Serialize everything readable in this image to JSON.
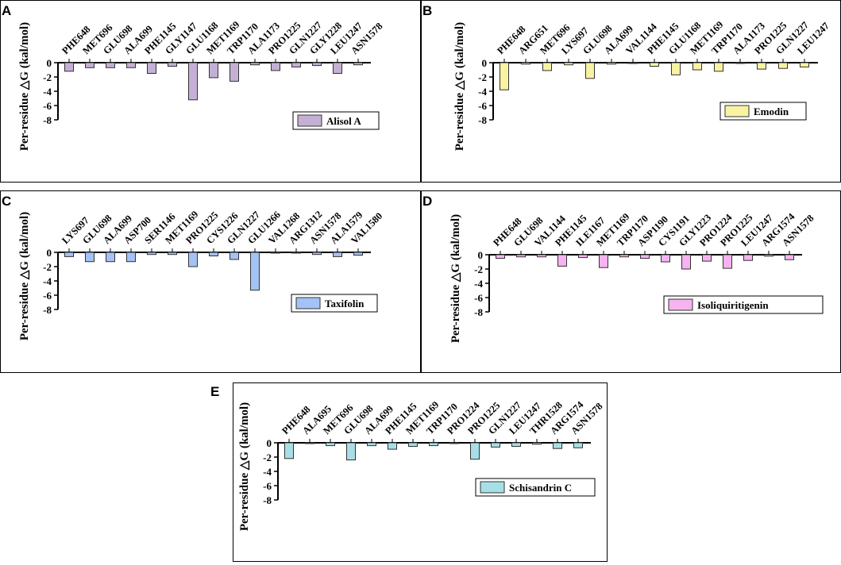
{
  "chart_data": [
    {
      "panel": "A",
      "type": "bar",
      "ylabel": "Per-residue △G (kal/mol)",
      "ylim": [
        -8,
        0
      ],
      "yticks": [
        "0",
        "-2",
        "-4",
        "-6",
        "-8"
      ],
      "legend": "Alisol A",
      "color": "#c5b0d5",
      "categories": [
        "PHE648",
        "MET696",
        "GLU698",
        "ALA699",
        "PHE1145",
        "GLY1147",
        "GLU1168",
        "MET1169",
        "TRP1170",
        "ALA1173",
        "PRO1225",
        "GLN1227",
        "GLY1228",
        "LEU1247",
        "ASN1578"
      ],
      "values": [
        -1.2,
        -0.7,
        -0.7,
        -0.7,
        -1.5,
        -0.5,
        -5.2,
        -2.1,
        -2.6,
        -0.3,
        -1.1,
        -0.6,
        -0.4,
        -1.5,
        -0.3
      ]
    },
    {
      "panel": "B",
      "type": "bar",
      "ylabel": "Per-residue △G (kal/mol)",
      "ylim": [
        -8,
        0
      ],
      "yticks": [
        "0",
        "-2",
        "-4",
        "-6",
        "-8"
      ],
      "legend": "Emodin",
      "color": "#f7f3a3",
      "categories": [
        "PHE648",
        "ARG651",
        "MET696",
        "LYS697",
        "GLU698",
        "ALA699",
        "VAL1144",
        "PHE1145",
        "GLU1168",
        "MET1169",
        "TRP1170",
        "ALA1173",
        "PRO1225",
        "GLN1227",
        "LEU1247"
      ],
      "values": [
        -3.8,
        -0.2,
        -1.1,
        -0.3,
        -2.2,
        -0.2,
        -0.1,
        -0.5,
        -1.7,
        -1.0,
        -1.2,
        -0.1,
        -0.9,
        -0.8,
        -0.6
      ]
    },
    {
      "panel": "C",
      "type": "bar",
      "ylabel": "Per-residue △G (kal/mol)",
      "ylim": [
        -8,
        0
      ],
      "yticks": [
        "0",
        "-2",
        "-4",
        "-6",
        "-8"
      ],
      "legend": "Taxifolin",
      "color": "#a4c2f4",
      "categories": [
        "LYS697",
        "GLU698",
        "ALA699",
        "ASP700",
        "SER1146",
        "MET1169",
        "PRO1225",
        "CYS1226",
        "GLN1227",
        "GLU1266",
        "VAL1268",
        "ARG1312",
        "ASN1578",
        "ALA1579",
        "VAL1580"
      ],
      "values": [
        -0.6,
        -1.3,
        -1.3,
        -1.3,
        -0.3,
        -0.3,
        -2.0,
        -0.5,
        -1.0,
        -5.3,
        -0.1,
        -0.1,
        -0.3,
        -0.6,
        -0.4
      ]
    },
    {
      "panel": "D",
      "type": "bar",
      "ylabel": "Per-residue △G (kal/mol)",
      "ylim": [
        -8,
        0
      ],
      "yticks": [
        "0",
        "-2",
        "-4",
        "-6",
        "-8"
      ],
      "legend": "Isoliquiritigenin",
      "color": "#f6b3f0",
      "categories": [
        "PHE648",
        "GLU698",
        "VAL1144",
        "PHE1145",
        "ILE1167",
        "MET1169",
        "TRP1170",
        "ASP1190",
        "CYS1191",
        "GLY1223",
        "PRO1224",
        "PRO1225",
        "LEU1247",
        "ARG1574",
        "ASN1578"
      ],
      "values": [
        -0.5,
        -0.3,
        -0.3,
        -1.6,
        -0.4,
        -1.8,
        -0.3,
        -0.5,
        -1.0,
        -2.0,
        -0.9,
        -1.9,
        -0.8,
        -0.2,
        -0.7
      ]
    },
    {
      "panel": "E",
      "type": "bar",
      "ylabel": "Per-residue △G (kal/mol)",
      "ylim": [
        -8,
        0
      ],
      "yticks": [
        "0",
        "-2",
        "-4",
        "-6",
        "-8"
      ],
      "legend": "Schisandrin C",
      "color": "#a6e0e6",
      "categories": [
        "PHE648",
        "ALA695",
        "MET696",
        "GLU698",
        "ALA699",
        "PHE1145",
        "MET1169",
        "TRP1170",
        "PRO1224",
        "PRO1225",
        "GLN1227",
        "LEU1247",
        "THR1528",
        "ARG1574",
        "ASN1578"
      ],
      "values": [
        -2.2,
        -0.1,
        -0.4,
        -2.4,
        -0.4,
        -0.9,
        -0.5,
        -0.4,
        -0.1,
        -2.3,
        -0.6,
        -0.5,
        -0.2,
        -0.8,
        -0.7
      ]
    }
  ]
}
